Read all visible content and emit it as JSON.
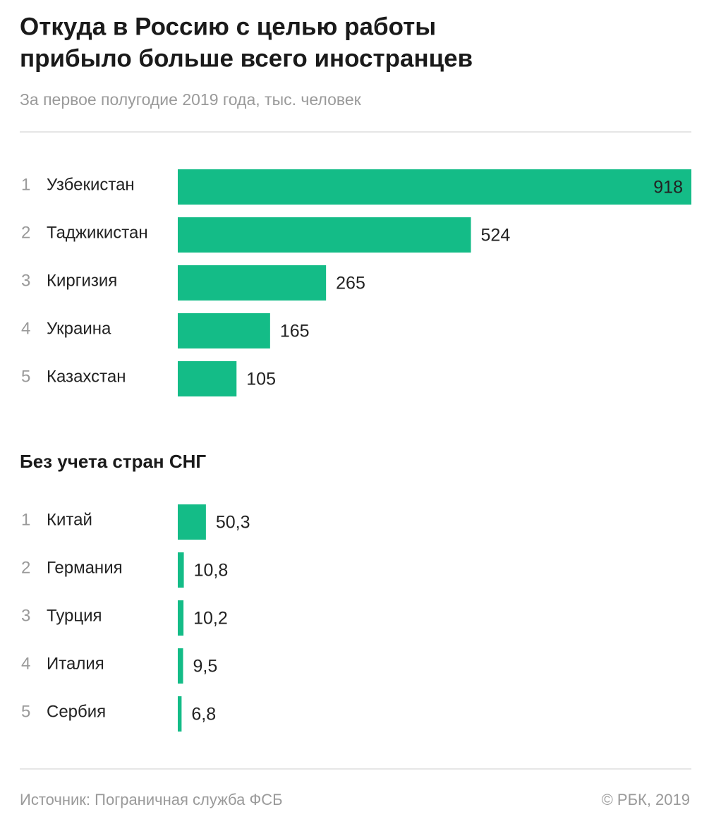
{
  "title": "Откуда в Россию с целью работы прибыло больше всего иностранцев",
  "subtitle": "За первое полугодие 2019 года, тыс. человек",
  "chart_data": [
    {
      "type": "bar",
      "orientation": "horizontal",
      "ranks": [
        1,
        2,
        3,
        4,
        5
      ],
      "categories": [
        "Узбекистан",
        "Таджикистан",
        "Киргизия",
        "Украина",
        "Казахстан"
      ],
      "values": [
        918,
        524,
        265,
        165,
        105
      ],
      "color": "#14bc87",
      "xlim": [
        0,
        918
      ]
    },
    {
      "type": "bar",
      "orientation": "horizontal",
      "title": "Без учета стран СНГ",
      "ranks": [
        1,
        2,
        3,
        4,
        5
      ],
      "categories": [
        "Китай",
        "Германия",
        "Турция",
        "Италия",
        "Сербия"
      ],
      "values": [
        50.3,
        10.8,
        10.2,
        9.5,
        6.8
      ],
      "value_labels": [
        "50,3",
        "10,8",
        "10,2",
        "9,5",
        "6,8"
      ],
      "color": "#14bc87",
      "xlim": [
        0,
        918
      ]
    }
  ],
  "footer": {
    "source": "Источник: Пограничная служба ФСБ",
    "copyright": "© РБК, 2019"
  }
}
